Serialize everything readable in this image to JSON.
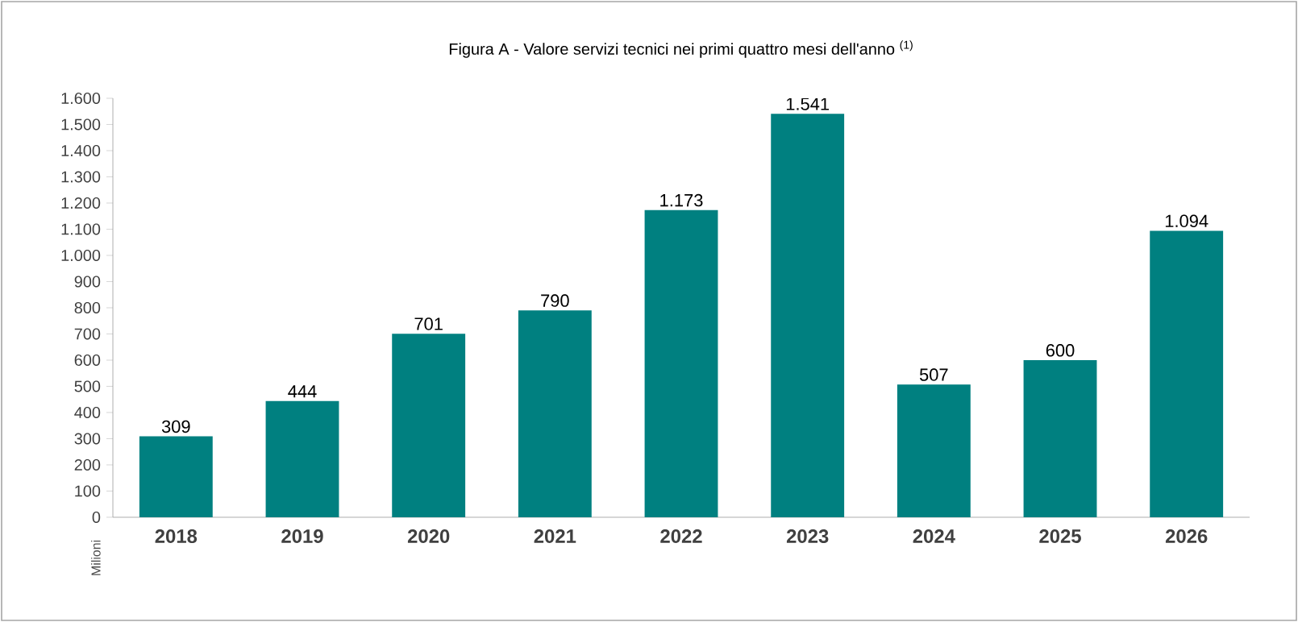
{
  "chart_data": {
    "type": "bar",
    "title": "Figura A - Valore servizi tecnici nei primi quattro mesi dell'anno $^{(1)}$",
    "ylabel": "Milioni",
    "categories": [
      "2018",
      "2019",
      "2020",
      "2021",
      "2022",
      "2023",
      "2024",
      "2025",
      "2026"
    ],
    "values": [
      309,
      444,
      701,
      790,
      1173,
      1541,
      507,
      600,
      1094
    ],
    "value_labels": [
      "309",
      "444",
      "701",
      "790",
      "1.173",
      "1.541",
      "507",
      "600",
      "1.094"
    ],
    "color": "#008080",
    "ylim": [
      0,
      1600
    ],
    "yticks": [
      0,
      100,
      200,
      300,
      400,
      500,
      600,
      700,
      800,
      900,
      {
        "value": 1000,
        "label": "1.000"
      },
      {
        "value": 1100,
        "label": "1.100"
      },
      {
        "value": 1200,
        "label": "1.200"
      },
      {
        "value": 1300,
        "label": "1.300"
      },
      {
        "value": 1400,
        "label": "1.400"
      },
      {
        "value": 1500,
        "label": "1.500"
      },
      {
        "value": 1600,
        "label": "1.600"
      }
    ],
    "grid": false
  }
}
